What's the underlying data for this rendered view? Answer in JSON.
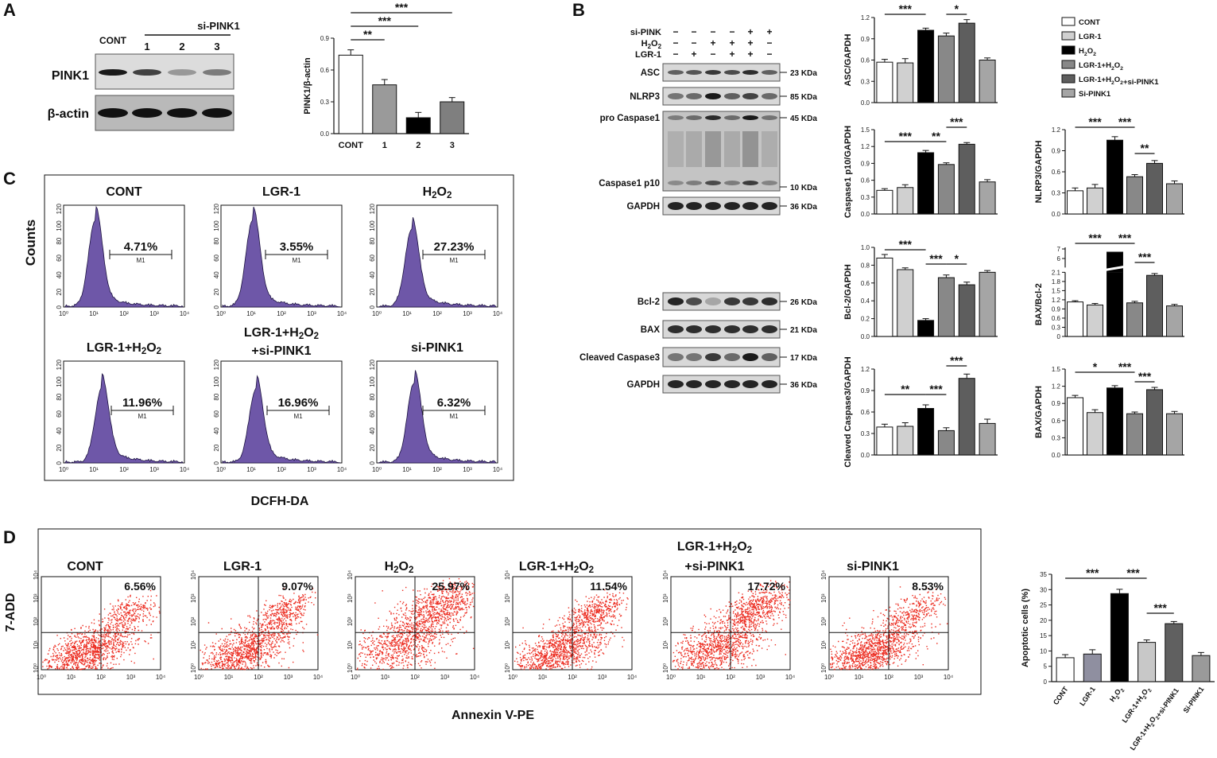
{
  "panels": {
    "A": "A",
    "B": "B",
    "C": "C",
    "D": "D"
  },
  "panel_a": {
    "blot_header": "si-PINK1",
    "lanes": [
      "CONT",
      "1",
      "2",
      "3"
    ],
    "rows": [
      "PINK1",
      "β-actin"
    ],
    "chart_data": {
      "type": "bar",
      "categories": [
        "CONT",
        "1",
        "2",
        "3"
      ],
      "values": [
        0.74,
        0.46,
        0.15,
        0.3
      ],
      "errors": [
        0.05,
        0.05,
        0.05,
        0.04
      ],
      "fills": [
        "#ffffff",
        "#9a9a9a",
        "#000000",
        "#7f7f7f"
      ],
      "ylabel": "PINK1/β-actin",
      "ylim": [
        0,
        0.9
      ],
      "yticks": [
        "0.0",
        "0.3",
        "0.6",
        "0.9"
      ],
      "significance": [
        "**",
        "***",
        "***"
      ]
    }
  },
  "panel_b": {
    "treatments": [
      {
        "name": "si-PINK",
        "signs": [
          "−",
          "−",
          "−",
          "−",
          "+",
          "+"
        ]
      },
      {
        "name": "H2O2",
        "signs": [
          "−",
          "−",
          "+",
          "+",
          "+",
          "−"
        ]
      },
      {
        "name": "LGR-1",
        "signs": [
          "−",
          "+",
          "−",
          "+",
          "+",
          "−"
        ]
      }
    ],
    "blots_top": [
      {
        "name": "ASC",
        "kda": "23 KDa"
      },
      {
        "name": "NLRP3",
        "kda": "85 KDa"
      },
      {
        "name": "pro Caspase1",
        "kda": "45 KDa"
      },
      {
        "name": "Caspase1 p10",
        "kda": "10 KDa"
      },
      {
        "name": "GAPDH",
        "kda": "36 KDa"
      }
    ],
    "blots_bottom": [
      {
        "name": "Bcl-2",
        "kda": "26 KDa"
      },
      {
        "name": "BAX",
        "kda": "21 KDa"
      },
      {
        "name": "Cleaved Caspase3",
        "kda": "17 KDa"
      },
      {
        "name": "GAPDH",
        "kda": "36 KDa"
      }
    ],
    "legend": [
      {
        "label": "CONT",
        "color": "#ffffff"
      },
      {
        "label": "LGR-1",
        "color": "#d0d0d0"
      },
      {
        "label": "H2O2",
        "color": "#000000"
      },
      {
        "label": "LGR-1+H2O2",
        "color": "#888888"
      },
      {
        "label": "LGR-1+H2O2+si-PINK1",
        "color": "#5e5e5e"
      },
      {
        "label": "Si-PINK1",
        "color": "#a5a5a5"
      }
    ],
    "chart_data": [
      {
        "type": "bar",
        "ylabel": "ASC/GAPDH",
        "ylim": [
          0,
          1.2
        ],
        "yticks": [
          "0.0",
          "0.3",
          "0.6",
          "0.9",
          "1.2"
        ],
        "values": [
          0.57,
          0.56,
          1.02,
          0.94,
          1.12,
          0.6
        ],
        "errors": [
          0.04,
          0.06,
          0.03,
          0.04,
          0.05,
          0.03
        ],
        "significance": [
          "***",
          "*"
        ]
      },
      {
        "type": "bar",
        "ylabel": "Caspase1 p10/GAPDH",
        "ylim": [
          0,
          1.5
        ],
        "yticks": [
          "0.0",
          "0.3",
          "0.6",
          "0.9",
          "1.2",
          "1.5"
        ],
        "values": [
          0.42,
          0.47,
          1.09,
          0.88,
          1.24,
          0.57
        ],
        "errors": [
          0.03,
          0.05,
          0.04,
          0.03,
          0.03,
          0.04
        ],
        "significance": [
          "***",
          "**",
          "***"
        ]
      },
      {
        "type": "bar",
        "ylabel": "NLRP3/GAPDH",
        "ylim": [
          0,
          1.2
        ],
        "yticks": [
          "0.0",
          "0.3",
          "0.6",
          "0.9",
          "1.2"
        ],
        "values": [
          0.33,
          0.37,
          1.05,
          0.53,
          0.72,
          0.43
        ],
        "errors": [
          0.04,
          0.05,
          0.05,
          0.03,
          0.04,
          0.04
        ],
        "significance": [
          "***",
          "***",
          "**"
        ]
      },
      {
        "type": "bar",
        "ylabel": "Bcl-2/GAPDH",
        "ylim": [
          0,
          1.0
        ],
        "yticks": [
          "0.0",
          "0.2",
          "0.4",
          "0.6",
          "0.8",
          "1.0"
        ],
        "values": [
          0.88,
          0.75,
          0.18,
          0.66,
          0.58,
          0.72
        ],
        "errors": [
          0.04,
          0.02,
          0.02,
          0.03,
          0.03,
          0.02
        ],
        "significance": [
          "***",
          "***",
          "*"
        ]
      },
      {
        "type": "bar",
        "ylabel": "BAX/Bcl-2",
        "ylim": [
          0,
          2.1
        ],
        "yticks": [
          "0",
          "0.3",
          "0.6",
          "0.9",
          "1.2",
          "1.5",
          "1.8",
          "2.1",
          "6",
          "7"
        ],
        "axis_break": true,
        "values": [
          1.13,
          1.03,
          6.5,
          1.1,
          2.0,
          1.0
        ],
        "errors": [
          0.04,
          0.05,
          0.3,
          0.05,
          0.06,
          0.05
        ],
        "significance": [
          "***",
          "***",
          "***"
        ]
      },
      {
        "type": "bar",
        "ylabel": "Cleaved Caspase3/GAPDH",
        "ylim": [
          0,
          1.2
        ],
        "yticks": [
          "0.0",
          "0.3",
          "0.6",
          "0.9",
          "1.2"
        ],
        "values": [
          0.39,
          0.4,
          0.65,
          0.34,
          1.07,
          0.44
        ],
        "errors": [
          0.04,
          0.05,
          0.05,
          0.04,
          0.06,
          0.06
        ],
        "significance": [
          "**",
          "***",
          "***"
        ]
      },
      {
        "type": "bar",
        "ylabel": "BAX/GAPDH",
        "ylim": [
          0,
          1.5
        ],
        "yticks": [
          "0.0",
          "0.3",
          "0.6",
          "0.9",
          "1.2",
          "1.5"
        ],
        "values": [
          1.0,
          0.74,
          1.17,
          0.72,
          1.14,
          0.72
        ],
        "errors": [
          0.04,
          0.05,
          0.04,
          0.03,
          0.04,
          0.04
        ],
        "significance": [
          "*",
          "***",
          "***"
        ]
      }
    ]
  },
  "panel_c": {
    "ylabel": "Counts",
    "xlabel": "DCFH-DA",
    "gate": "M1",
    "yticks": [
      "0",
      "20",
      "40",
      "60",
      "80",
      "100",
      "120"
    ],
    "xticks": [
      "10⁰",
      "10¹",
      "10²",
      "10³",
      "10⁴"
    ],
    "histograms": [
      {
        "title": "CONT",
        "percent": "4.71%"
      },
      {
        "title": "LGR-1",
        "percent": "3.55%"
      },
      {
        "title": "H2O2",
        "percent": "27.23%"
      },
      {
        "title": "LGR-1+H2O2",
        "percent": "11.96%"
      },
      {
        "title": "LGR-1+H2O2",
        "title2": "+si-PINK1",
        "percent": "16.96%"
      },
      {
        "title": "si-PINK1",
        "percent": "6.32%"
      }
    ]
  },
  "panel_d": {
    "ylabel": "7-ADD",
    "xlabel": "Annexin V-PE",
    "ticks": [
      "10⁰",
      "10¹",
      "10²",
      "10³",
      "10⁴"
    ],
    "plots": [
      {
        "title": "CONT",
        "percent": "6.56%"
      },
      {
        "title": "LGR-1",
        "percent": "9.07%"
      },
      {
        "title": "H2O2",
        "percent": "25.97%"
      },
      {
        "title": "LGR-1+H2O2",
        "percent": "11.54%"
      },
      {
        "title": "LGR-1+H2O2",
        "title2": "+si-PINK1",
        "percent": "17.72%"
      },
      {
        "title": "si-PINK1",
        "percent": "8.53%"
      }
    ],
    "chart_data": {
      "type": "bar",
      "categories": [
        "CONT",
        "LGR-1",
        "H2O2",
        "LGR-1+H2O2",
        "LGR-1+H2O2+si-PINK1",
        "Si-PINK1"
      ],
      "values": [
        7.8,
        9.0,
        28.7,
        12.8,
        18.9,
        8.5
      ],
      "errors": [
        1.0,
        1.4,
        1.4,
        0.8,
        0.7,
        1.0
      ],
      "fills": [
        "#ffffff",
        "#8f8fa0",
        "#000000",
        "#c8c8c8",
        "#606060",
        "#9a9a9a"
      ],
      "ylabel": "Apoptotic cells (%)",
      "ylim": [
        0,
        35
      ],
      "yticks": [
        "0",
        "5",
        "10",
        "15",
        "20",
        "25",
        "30",
        "35"
      ],
      "significance": [
        "***",
        "***",
        "***"
      ]
    }
  }
}
